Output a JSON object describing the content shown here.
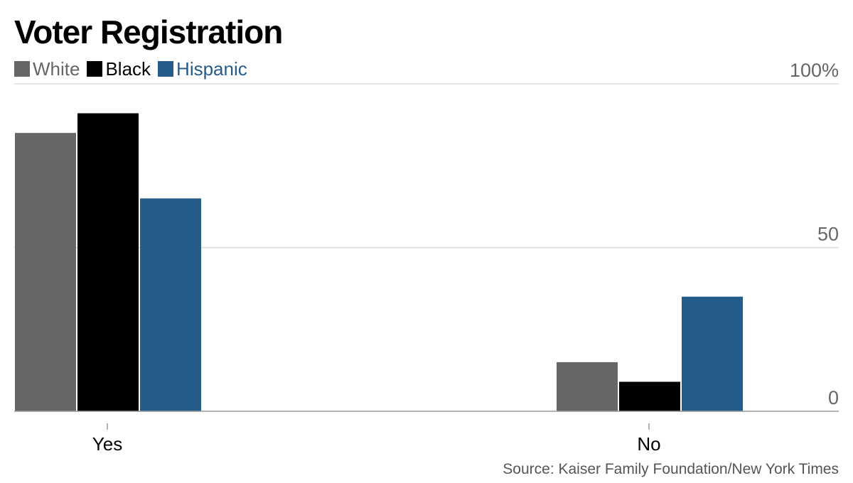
{
  "chart_data": {
    "type": "bar",
    "title": "Voter Registration",
    "categories": [
      "Yes",
      "No"
    ],
    "series": [
      {
        "name": "White",
        "color": "#666666",
        "values": [
          85,
          15
        ]
      },
      {
        "name": "Black",
        "color": "#000000",
        "values": [
          91,
          9
        ]
      },
      {
        "name": "Hispanic",
        "color": "#255c8a",
        "values": [
          65,
          35
        ]
      }
    ],
    "ylim": [
      0,
      100
    ],
    "yticks": [
      {
        "value": 0,
        "label": "0"
      },
      {
        "value": 50,
        "label": "50"
      },
      {
        "value": 100,
        "label": "100%"
      }
    ],
    "grid": true,
    "legend_position": "top-left",
    "source": "Source: Kaiser Family Foundation/New York Times"
  }
}
